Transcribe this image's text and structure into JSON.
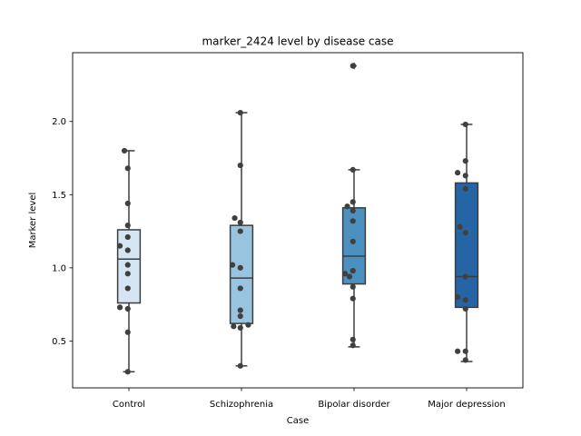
{
  "chart_data": {
    "type": "box",
    "title": "marker_2424 level by disease case",
    "xlabel": "Case",
    "ylabel": "Marker level",
    "ylim": [
      0.18,
      2.47
    ],
    "yticks": [
      0.5,
      1.0,
      1.5,
      2.0
    ],
    "ytick_labels": [
      "0.5",
      "1.0",
      "1.5",
      "2.0"
    ],
    "grid": false,
    "categories": [
      "Control",
      "Schizophrenia",
      "Bipolar disorder",
      "Major depression"
    ],
    "colors": [
      "#d5e5f3",
      "#99c4e0",
      "#4c90c0",
      "#2565a6"
    ],
    "boxes": [
      {
        "whisker_low": 0.29,
        "q1": 0.76,
        "median": 1.06,
        "q3": 1.26,
        "whisker_high": 1.8,
        "outliers": []
      },
      {
        "whisker_low": 0.33,
        "q1": 0.62,
        "median": 0.93,
        "q3": 1.29,
        "whisker_high": 2.06,
        "outliers": []
      },
      {
        "whisker_low": 0.46,
        "q1": 0.89,
        "median": 1.08,
        "q3": 1.41,
        "whisker_high": 1.67,
        "outliers": [
          2.38
        ]
      },
      {
        "whisker_low": 0.36,
        "q1": 0.73,
        "median": 0.94,
        "q3": 1.58,
        "whisker_high": 1.98,
        "outliers": []
      }
    ],
    "points": [
      [
        [
          -0.04,
          1.8
        ],
        [
          -0.01,
          1.68
        ],
        [
          -0.01,
          1.44
        ],
        [
          -0.01,
          1.29
        ],
        [
          -0.01,
          1.21
        ],
        [
          -0.08,
          1.15
        ],
        [
          -0.01,
          1.12
        ],
        [
          -0.01,
          1.02
        ],
        [
          -0.01,
          0.96
        ],
        [
          -0.01,
          0.86
        ],
        [
          -0.08,
          0.73
        ],
        [
          -0.01,
          0.72
        ],
        [
          -0.01,
          0.56
        ],
        [
          -0.01,
          0.29
        ]
      ],
      [
        [
          -0.01,
          2.06
        ],
        [
          -0.01,
          1.7
        ],
        [
          -0.06,
          1.34
        ],
        [
          -0.01,
          1.31
        ],
        [
          -0.01,
          1.25
        ],
        [
          -0.08,
          1.02
        ],
        [
          -0.01,
          1.0
        ],
        [
          -0.01,
          0.86
        ],
        [
          -0.01,
          0.71
        ],
        [
          -0.01,
          0.67
        ],
        [
          -0.07,
          0.6
        ],
        [
          -0.01,
          0.59
        ],
        [
          0.06,
          0.61
        ],
        [
          -0.01,
          0.33
        ]
      ],
      [
        [
          -0.01,
          2.38
        ],
        [
          -0.01,
          1.67
        ],
        [
          -0.01,
          1.45
        ],
        [
          -0.06,
          1.42
        ],
        [
          -0.01,
          1.39
        ],
        [
          -0.01,
          1.32
        ],
        [
          -0.01,
          1.18
        ],
        [
          -0.01,
          0.98
        ],
        [
          -0.08,
          0.96
        ],
        [
          -0.04,
          0.94
        ],
        [
          -0.01,
          0.87
        ],
        [
          -0.01,
          0.79
        ],
        [
          -0.01,
          0.51
        ],
        [
          -0.01,
          0.47
        ]
      ],
      [
        [
          -0.01,
          1.98
        ],
        [
          -0.01,
          1.73
        ],
        [
          -0.08,
          1.65
        ],
        [
          -0.01,
          1.63
        ],
        [
          -0.01,
          1.54
        ],
        [
          -0.06,
          1.28
        ],
        [
          -0.01,
          1.24
        ],
        [
          -0.01,
          0.94
        ],
        [
          -0.08,
          0.8
        ],
        [
          -0.01,
          0.78
        ],
        [
          -0.01,
          0.72
        ],
        [
          -0.08,
          0.43
        ],
        [
          -0.01,
          0.43
        ],
        [
          -0.01,
          0.37
        ]
      ]
    ]
  }
}
